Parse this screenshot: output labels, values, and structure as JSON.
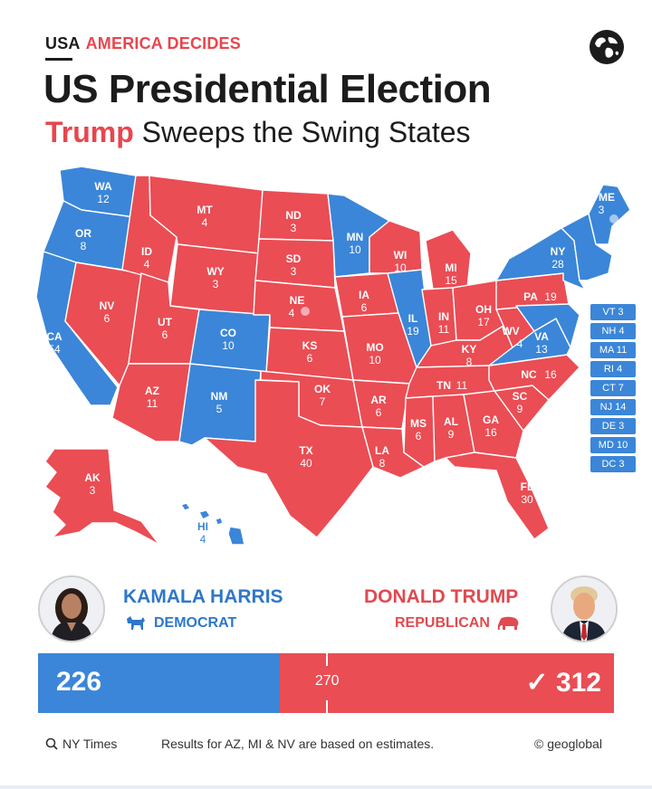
{
  "header": {
    "kicker_primary": "USA",
    "kicker_accent": "AMERICA DECIDES",
    "title": "US Presidential Election",
    "subtitle_highlight": "Trump",
    "subtitle_rest": "Sweeps the Swing States"
  },
  "colors": {
    "democrat": "#3b86d8",
    "republican": "#ea4d54",
    "background": "#ffffff"
  },
  "states": {
    "WA": {
      "abbr": "WA",
      "votes": "12",
      "party": "D"
    },
    "OR": {
      "abbr": "OR",
      "votes": "8",
      "party": "D"
    },
    "CA": {
      "abbr": "CA",
      "votes": "54",
      "party": "D"
    },
    "NV": {
      "abbr": "NV",
      "votes": "6",
      "party": "R"
    },
    "ID": {
      "abbr": "ID",
      "votes": "4",
      "party": "R"
    },
    "MT": {
      "abbr": "MT",
      "votes": "4",
      "party": "R"
    },
    "WY": {
      "abbr": "WY",
      "votes": "3",
      "party": "R"
    },
    "UT": {
      "abbr": "UT",
      "votes": "6",
      "party": "R"
    },
    "AZ": {
      "abbr": "AZ",
      "votes": "11",
      "party": "R"
    },
    "CO": {
      "abbr": "CO",
      "votes": "10",
      "party": "D"
    },
    "NM": {
      "abbr": "NM",
      "votes": "5",
      "party": "D"
    },
    "ND": {
      "abbr": "ND",
      "votes": "3",
      "party": "R"
    },
    "SD": {
      "abbr": "SD",
      "votes": "3",
      "party": "R"
    },
    "NE": {
      "abbr": "NE",
      "votes": "4",
      "party": "R"
    },
    "KS": {
      "abbr": "KS",
      "votes": "6",
      "party": "R"
    },
    "OK": {
      "abbr": "OK",
      "votes": "7",
      "party": "R"
    },
    "TX": {
      "abbr": "TX",
      "votes": "40",
      "party": "R"
    },
    "MN": {
      "abbr": "MN",
      "votes": "10",
      "party": "D"
    },
    "IA": {
      "abbr": "IA",
      "votes": "6",
      "party": "R"
    },
    "MO": {
      "abbr": "MO",
      "votes": "10",
      "party": "R"
    },
    "AR": {
      "abbr": "AR",
      "votes": "6",
      "party": "R"
    },
    "LA": {
      "abbr": "LA",
      "votes": "8",
      "party": "R"
    },
    "WI": {
      "abbr": "WI",
      "votes": "10",
      "party": "R"
    },
    "IL": {
      "abbr": "IL",
      "votes": "19",
      "party": "D"
    },
    "MI": {
      "abbr": "MI",
      "votes": "15",
      "party": "R"
    },
    "IN": {
      "abbr": "IN",
      "votes": "11",
      "party": "R"
    },
    "OH": {
      "abbr": "OH",
      "votes": "17",
      "party": "R"
    },
    "KY": {
      "abbr": "KY",
      "votes": "8",
      "party": "R"
    },
    "TN": {
      "abbr": "TN",
      "votes": "11",
      "party": "R"
    },
    "MS": {
      "abbr": "MS",
      "votes": "6",
      "party": "R"
    },
    "AL": {
      "abbr": "AL",
      "votes": "9",
      "party": "R"
    },
    "GA": {
      "abbr": "GA",
      "votes": "16",
      "party": "R"
    },
    "FL": {
      "abbr": "FL",
      "votes": "30",
      "party": "R"
    },
    "SC": {
      "abbr": "SC",
      "votes": "9",
      "party": "R"
    },
    "NC": {
      "abbr": "NC",
      "votes": "16",
      "party": "R"
    },
    "VA": {
      "abbr": "VA",
      "votes": "13",
      "party": "D"
    },
    "WV": {
      "abbr": "WV",
      "votes": "4",
      "party": "R"
    },
    "PA": {
      "abbr": "PA",
      "votes": "19",
      "party": "R"
    },
    "NY": {
      "abbr": "NY",
      "votes": "28",
      "party": "D"
    },
    "ME": {
      "abbr": "ME",
      "votes": "3",
      "party": "D"
    },
    "AK": {
      "abbr": "AK",
      "votes": "3",
      "party": "R"
    },
    "HI": {
      "abbr": "HI",
      "votes": "4",
      "party": "D"
    }
  },
  "northeast_boxes": [
    "VT 3",
    "NH 4",
    "MA 11",
    "RI 4",
    "CT 7",
    "NJ 14",
    "DE 3",
    "MD 10",
    "DC 3"
  ],
  "candidates": {
    "dem": {
      "name": "KAMALA HARRIS",
      "party": "DEMOCRAT",
      "votes": 226,
      "avatar_icon": "portrait-icon"
    },
    "rep": {
      "name": "DONALD TRUMP",
      "party": "REPUBLICAN",
      "votes": 312,
      "avatar_icon": "portrait-icon"
    }
  },
  "tally": {
    "dem_label": "226",
    "threshold_label": "270",
    "rep_label": "✓ 312",
    "total": 538,
    "threshold": 270
  },
  "footer": {
    "source": "NY Times",
    "note": "Results for AZ, MI & NV are based on estimates.",
    "credit": "© geoglobal"
  }
}
